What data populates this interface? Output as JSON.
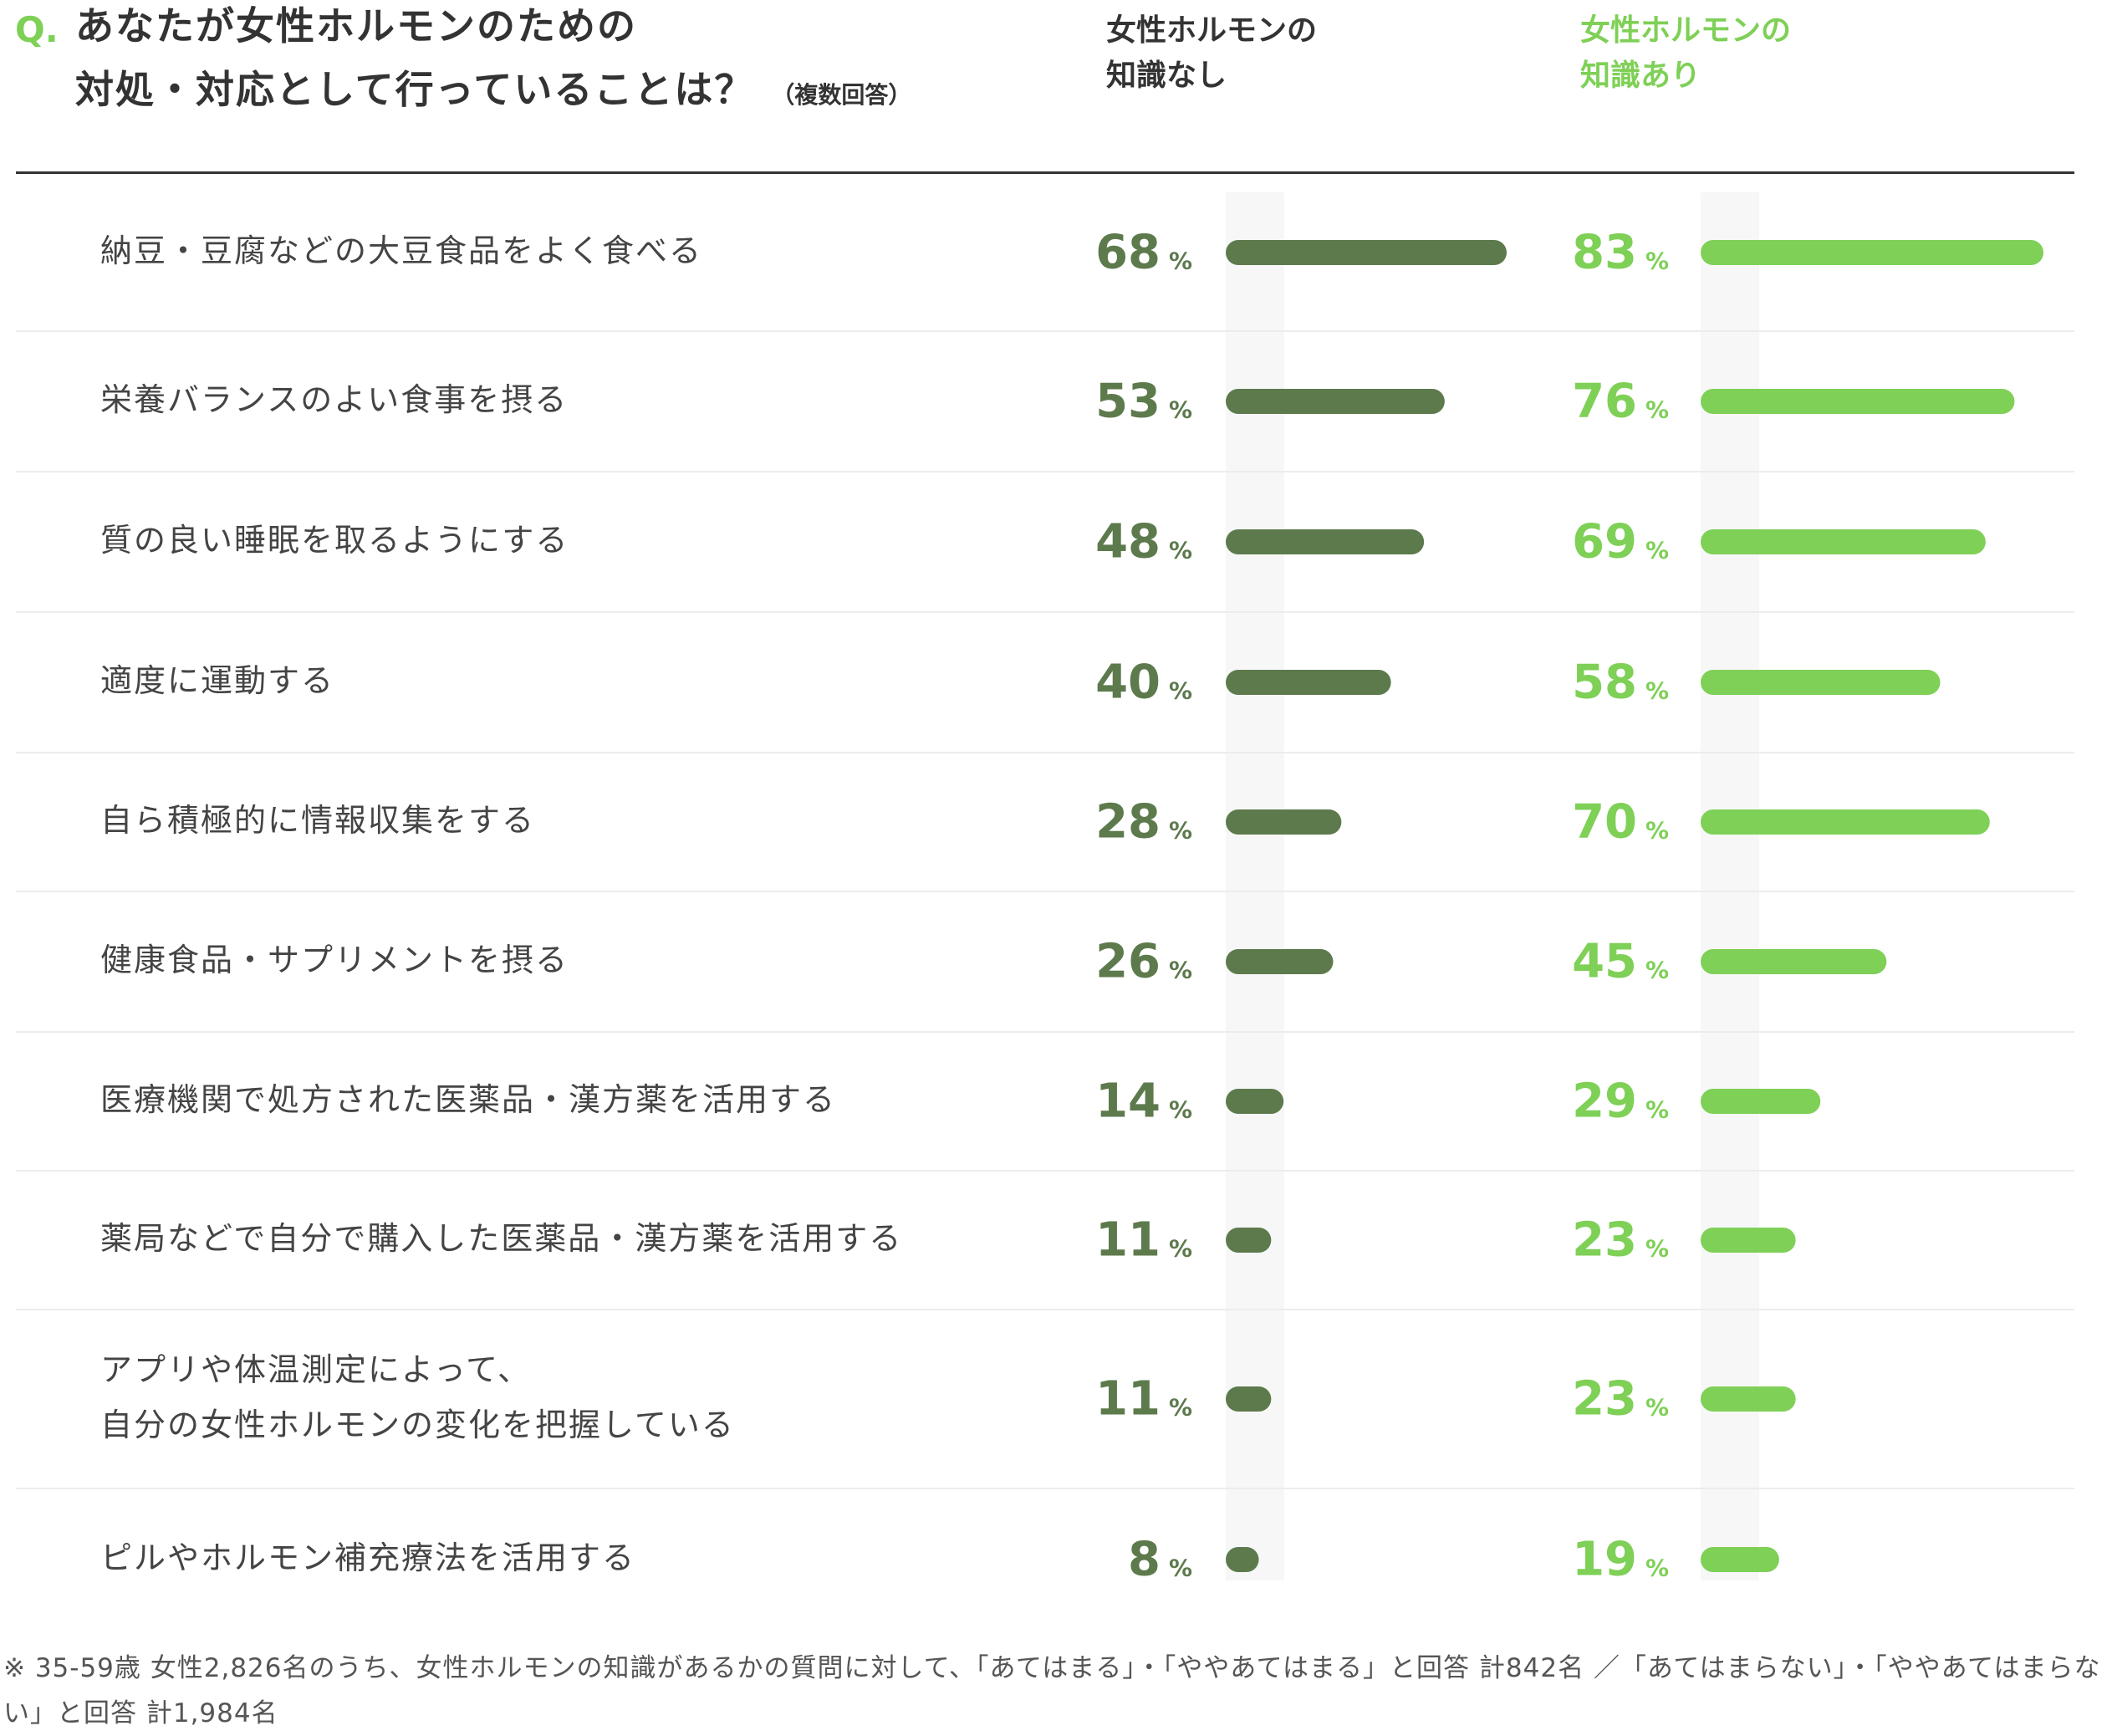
{
  "question": {
    "prefix": "Q.",
    "line1": "あなたが女性ホルモンのための",
    "line2": "対処・対応として行っていることは？",
    "note": "（複数回答）"
  },
  "legend": {
    "no_knowledge": [
      "女性ホルモンの",
      "知識なし"
    ],
    "has_knowledge": [
      "女性ホルモンの",
      "知識あり"
    ]
  },
  "colors": {
    "no_knowledge": "#5d7a4d",
    "has_knowledge": "#7ed056",
    "accent": "#7ed056",
    "text": "#333333"
  },
  "chart_data": {
    "type": "bar",
    "orientation": "horizontal",
    "unit": "%",
    "categories": [
      [
        "納豆・豆腐などの大豆食品をよく食べる"
      ],
      [
        "栄養バランスのよい食事を摂る"
      ],
      [
        "質の良い睡眠を取るようにする"
      ],
      [
        "適度に運動する"
      ],
      [
        "自ら積極的に情報収集をする"
      ],
      [
        "健康食品・サプリメントを摂る"
      ],
      [
        "医療機関で処方された医薬品・漢方薬を活用する"
      ],
      [
        "薬局などで自分で購入した医薬品・漢方薬を活用する"
      ],
      [
        "アプリや体温測定によって、",
        "自分の女性ホルモンの変化を把握している"
      ],
      [
        "ピルやホルモン補充療法を活用する"
      ]
    ],
    "series": [
      {
        "name": "女性ホルモンの知識なし",
        "values": [
          68,
          53,
          48,
          40,
          28,
          26,
          14,
          11,
          11,
          8
        ]
      },
      {
        "name": "女性ホルモンの知識あり",
        "values": [
          83,
          76,
          69,
          58,
          70,
          45,
          29,
          23,
          23,
          19
        ]
      }
    ],
    "xlim": [
      0,
      100
    ],
    "legend_position": "top-right",
    "grid": false
  },
  "footnote": "※ 35-59歳 女性2,826名のうち、女性ホルモンの知識があるかの質問に対して、「あてはまる」・「ややあてはまる」と回答 計842名 ／「あてはまらない」・「ややあてはまらない」と回答 計1,984名"
}
